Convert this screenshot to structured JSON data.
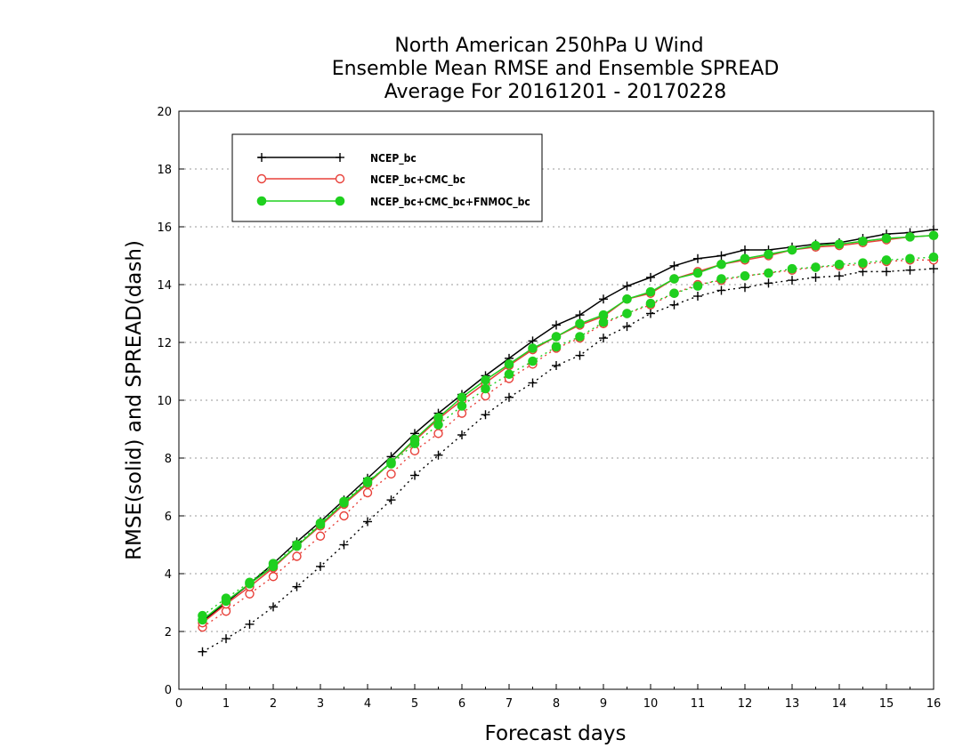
{
  "chart_data": {
    "type": "line",
    "title": [
      "North American 250hPa U Wind",
      "Ensemble Mean RMSE and Ensemble SPREAD",
      "Average For 20161201 - 20170228"
    ],
    "xlabel": "Forecast days",
    "ylabel": "RMSE(solid) and SPREAD(dash)",
    "xlim": [
      0,
      16
    ],
    "ylim": [
      0,
      20
    ],
    "xticks": [
      0,
      1,
      2,
      3,
      4,
      5,
      6,
      7,
      8,
      9,
      10,
      11,
      12,
      13,
      14,
      15,
      16
    ],
    "yticks": [
      0,
      2,
      4,
      6,
      8,
      10,
      12,
      14,
      16,
      18,
      20
    ],
    "grid": true,
    "legend_position": "top-left",
    "x": [
      0.5,
      1,
      1.5,
      2,
      2.5,
      3,
      3.5,
      4,
      4.5,
      5,
      5.5,
      6,
      6.5,
      7,
      7.5,
      8,
      8.5,
      9,
      9.5,
      10,
      10.5,
      11,
      11.5,
      12,
      12.5,
      13,
      13.5,
      14,
      14.5,
      15,
      15.5,
      16
    ],
    "series": [
      {
        "name": "NCEP_bc",
        "color": "#000000",
        "marker": "plus",
        "rmse": [
          2.35,
          3.0,
          3.65,
          4.35,
          5.1,
          5.8,
          6.55,
          7.3,
          8.05,
          8.85,
          9.55,
          10.2,
          10.85,
          11.45,
          12.05,
          12.6,
          12.95,
          13.5,
          13.95,
          14.25,
          14.65,
          14.9,
          15.0,
          15.2,
          15.2,
          15.3,
          15.4,
          15.45,
          15.6,
          15.75,
          15.8,
          15.9
        ],
        "spread": [
          1.3,
          1.75,
          2.25,
          2.85,
          3.55,
          4.25,
          5.0,
          5.8,
          6.55,
          7.4,
          8.1,
          8.8,
          9.5,
          10.1,
          10.6,
          11.2,
          11.55,
          12.15,
          12.55,
          13.0,
          13.3,
          13.6,
          13.8,
          13.9,
          14.05,
          14.15,
          14.25,
          14.3,
          14.45,
          14.45,
          14.5,
          14.55
        ]
      },
      {
        "name": "NCEP_bc+CMC_bc",
        "color": "#e8413a",
        "marker": "open-circle",
        "rmse": [
          2.3,
          2.95,
          3.55,
          4.2,
          4.95,
          5.65,
          6.4,
          7.1,
          7.85,
          8.6,
          9.35,
          10.0,
          10.6,
          11.2,
          11.75,
          12.2,
          12.6,
          12.9,
          13.5,
          13.7,
          14.2,
          14.45,
          14.7,
          14.85,
          15.0,
          15.2,
          15.3,
          15.35,
          15.45,
          15.55,
          15.65,
          15.7
        ],
        "spread": [
          2.15,
          2.7,
          3.3,
          3.9,
          4.6,
          5.3,
          6.0,
          6.8,
          7.45,
          8.25,
          8.85,
          9.55,
          10.15,
          10.75,
          11.25,
          11.8,
          12.15,
          12.65,
          13.0,
          13.3,
          13.7,
          14.0,
          14.15,
          14.3,
          14.4,
          14.5,
          14.6,
          14.65,
          14.7,
          14.8,
          14.85,
          14.85
        ]
      },
      {
        "name": "NCEP_bc+CMC_bc+FNMOC_bc",
        "color": "#1fd01f",
        "marker": "filled-circle",
        "rmse": [
          2.4,
          3.05,
          3.65,
          4.25,
          4.95,
          5.7,
          6.45,
          7.15,
          7.85,
          8.65,
          9.4,
          10.1,
          10.7,
          11.25,
          11.8,
          12.2,
          12.65,
          12.95,
          13.5,
          13.75,
          14.2,
          14.4,
          14.7,
          14.9,
          15.05,
          15.2,
          15.35,
          15.4,
          15.5,
          15.6,
          15.65,
          15.7
        ],
        "spread": [
          2.55,
          3.15,
          3.7,
          4.35,
          5.0,
          5.75,
          6.5,
          7.2,
          7.8,
          8.5,
          9.15,
          9.8,
          10.4,
          10.9,
          11.35,
          11.85,
          12.2,
          12.7,
          13.0,
          13.35,
          13.7,
          13.95,
          14.2,
          14.3,
          14.4,
          14.55,
          14.6,
          14.7,
          14.75,
          14.85,
          14.9,
          14.95
        ]
      }
    ]
  }
}
